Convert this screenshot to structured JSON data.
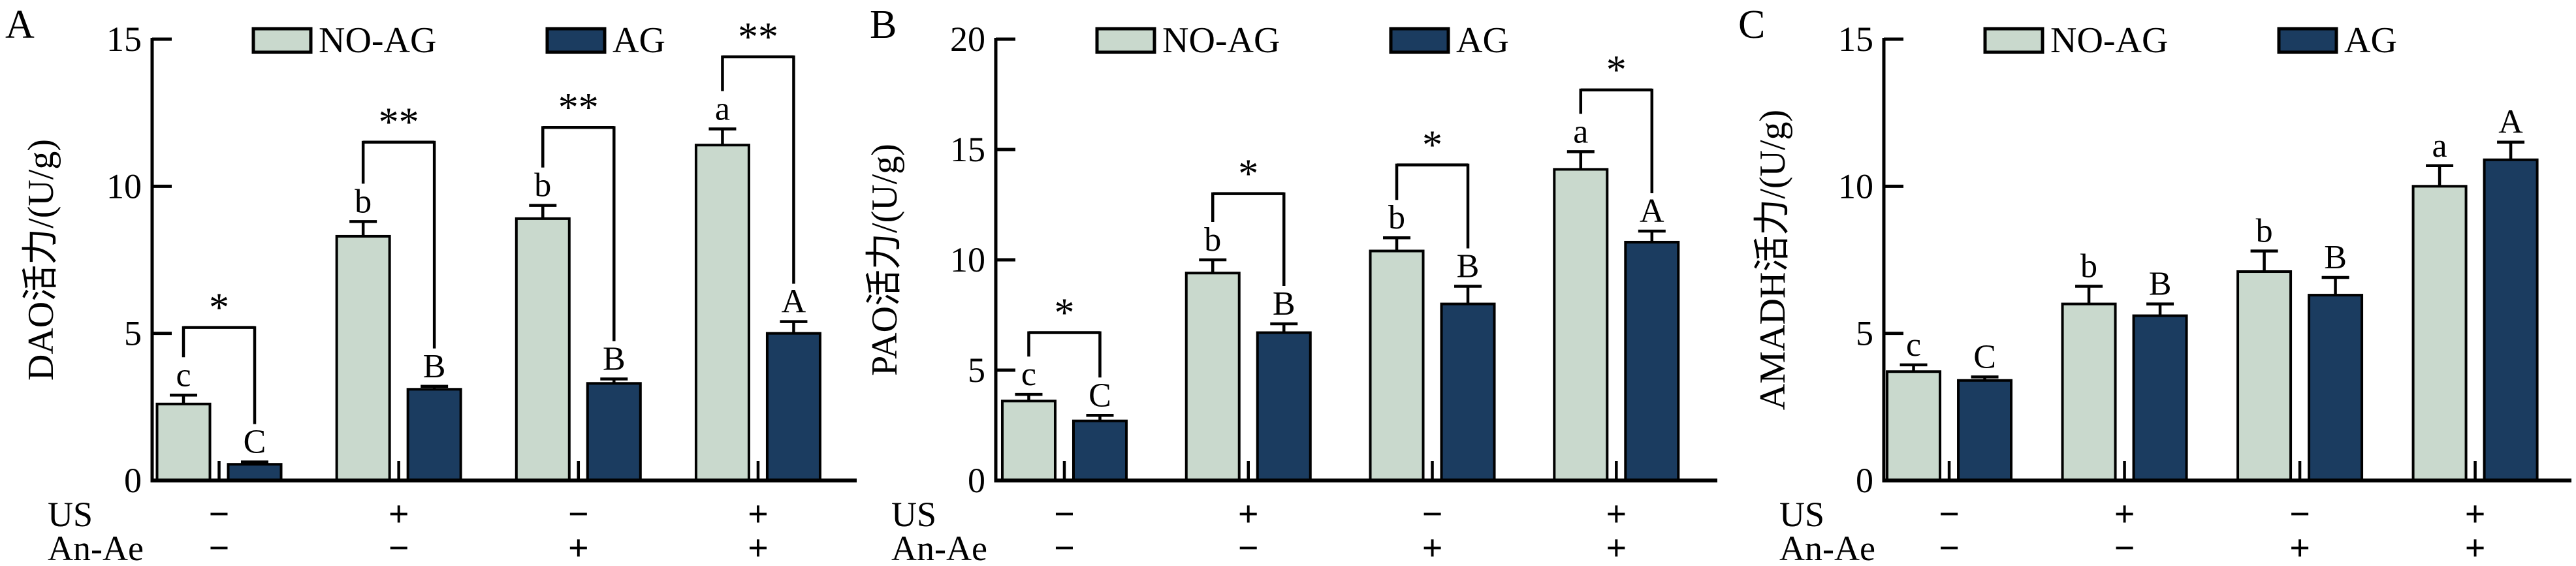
{
  "figure": {
    "background": "#ffffff",
    "colors": {
      "no_ag_fill": "#c9d9cd",
      "ag_fill": "#1b3c60",
      "stroke": "#000000"
    },
    "legend": [
      {
        "key": "no_ag",
        "label": "NO-AG"
      },
      {
        "key": "ag",
        "label": "AG"
      }
    ],
    "x_condition_rows": [
      {
        "key": "us",
        "label": "US"
      },
      {
        "key": "an_ae",
        "label": "An-Ae"
      }
    ]
  },
  "chart_data": [
    {
      "type": "bar",
      "panel_label": "A",
      "ylabel": "DAO活力/(U/g)",
      "ylim": [
        0,
        15
      ],
      "yticks": [
        0,
        5,
        10,
        15
      ],
      "grid": false,
      "legend_position": "top",
      "series_names": [
        "NO-AG",
        "AG"
      ],
      "groups": [
        {
          "us": "−",
          "an_ae": "−",
          "no_ag": {
            "value": 2.6,
            "error": 0.3,
            "letter": "c"
          },
          "ag": {
            "value": 0.55,
            "error": 0.08,
            "letter": "C"
          },
          "sig": {
            "symbol": "*",
            "y": 5.2
          }
        },
        {
          "us": "+",
          "an_ae": "−",
          "no_ag": {
            "value": 8.3,
            "error": 0.5,
            "letter": "b"
          },
          "ag": {
            "value": 3.1,
            "error": 0.1,
            "letter": "B"
          },
          "sig": {
            "symbol": "**",
            "y": 11.5
          }
        },
        {
          "us": "−",
          "an_ae": "+",
          "no_ag": {
            "value": 8.9,
            "error": 0.45,
            "letter": "b"
          },
          "ag": {
            "value": 3.3,
            "error": 0.15,
            "letter": "B"
          },
          "sig": {
            "symbol": "**",
            "y": 12.0
          }
        },
        {
          "us": "+",
          "an_ae": "+",
          "no_ag": {
            "value": 11.4,
            "error": 0.55,
            "letter": "a"
          },
          "ag": {
            "value": 5.0,
            "error": 0.4,
            "letter": "A"
          },
          "sig": {
            "symbol": "**",
            "y": 14.4
          }
        }
      ]
    },
    {
      "type": "bar",
      "panel_label": "B",
      "ylabel": "PAO活力/(U/g)",
      "ylim": [
        0,
        20
      ],
      "yticks": [
        0,
        5,
        10,
        15,
        20
      ],
      "grid": false,
      "legend_position": "top",
      "series_names": [
        "NO-AG",
        "AG"
      ],
      "groups": [
        {
          "us": "−",
          "an_ae": "−",
          "no_ag": {
            "value": 3.6,
            "error": 0.3,
            "letter": "c"
          },
          "ag": {
            "value": 2.7,
            "error": 0.25,
            "letter": "C"
          },
          "sig": {
            "symbol": "*",
            "y": 6.7
          }
        },
        {
          "us": "+",
          "an_ae": "−",
          "no_ag": {
            "value": 9.4,
            "error": 0.6,
            "letter": "b"
          },
          "ag": {
            "value": 6.7,
            "error": 0.4,
            "letter": "B"
          },
          "sig": {
            "symbol": "*",
            "y": 13.0
          }
        },
        {
          "us": "−",
          "an_ae": "+",
          "no_ag": {
            "value": 10.4,
            "error": 0.6,
            "letter": "b"
          },
          "ag": {
            "value": 8.0,
            "error": 0.8,
            "letter": "B"
          },
          "sig": {
            "symbol": "*",
            "y": 14.3
          }
        },
        {
          "us": "+",
          "an_ae": "+",
          "no_ag": {
            "value": 14.1,
            "error": 0.8,
            "letter": "a"
          },
          "ag": {
            "value": 10.8,
            "error": 0.5,
            "letter": "A"
          },
          "sig": {
            "symbol": "*",
            "y": 17.7
          }
        }
      ]
    },
    {
      "type": "bar",
      "panel_label": "C",
      "ylabel": "AMADH活力/(U/g)",
      "ylim": [
        0,
        15
      ],
      "yticks": [
        0,
        5,
        10,
        15
      ],
      "grid": false,
      "legend_position": "top",
      "series_names": [
        "NO-AG",
        "AG"
      ],
      "groups": [
        {
          "us": "−",
          "an_ae": "−",
          "no_ag": {
            "value": 3.7,
            "error": 0.23,
            "letter": "c"
          },
          "ag": {
            "value": 3.4,
            "error": 0.12,
            "letter": "C"
          },
          "sig": null
        },
        {
          "us": "+",
          "an_ae": "−",
          "no_ag": {
            "value": 6.0,
            "error": 0.6,
            "letter": "b"
          },
          "ag": {
            "value": 5.6,
            "error": 0.4,
            "letter": "B"
          },
          "sig": null
        },
        {
          "us": "−",
          "an_ae": "+",
          "no_ag": {
            "value": 7.1,
            "error": 0.7,
            "letter": "b"
          },
          "ag": {
            "value": 6.3,
            "error": 0.6,
            "letter": "B"
          },
          "sig": null
        },
        {
          "us": "+",
          "an_ae": "+",
          "no_ag": {
            "value": 10.0,
            "error": 0.7,
            "letter": "a"
          },
          "ag": {
            "value": 10.9,
            "error": 0.6,
            "letter": "A"
          },
          "sig": null
        }
      ]
    }
  ]
}
